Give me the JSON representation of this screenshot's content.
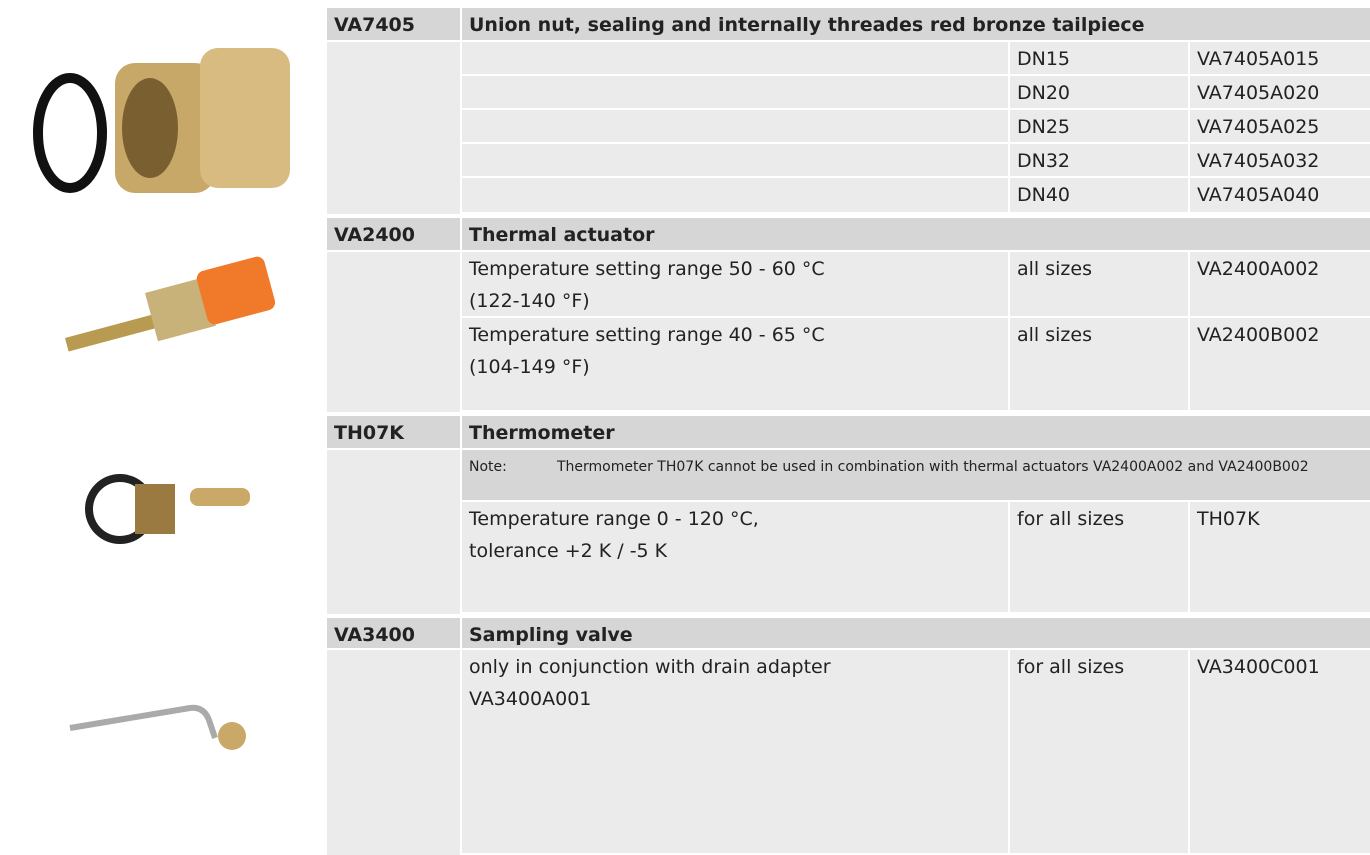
{
  "sections": [
    {
      "code": "VA7405",
      "title": "Union nut, sealing and internally threades red bronze tailpiece",
      "rows": [
        {
          "size": "DN15",
          "order": "VA7405A015"
        },
        {
          "size": "DN20",
          "order": "VA7405A020"
        },
        {
          "size": "DN25",
          "order": "VA7405A025"
        },
        {
          "size": "DN32",
          "order": "VA7405A032"
        },
        {
          "size": "DN40",
          "order": "VA7405A040"
        }
      ]
    },
    {
      "code": "VA2400",
      "title": "Thermal actuator",
      "rows": [
        {
          "desc": [
            "Temperature setting range 50 - 60 °C",
            "(122-140 °F)"
          ],
          "size": "all sizes",
          "order": "VA2400A002"
        },
        {
          "desc": [
            "Temperature setting range 40 - 65 °C",
            "(104-149 °F)"
          ],
          "size": "all sizes",
          "order": "VA2400B002"
        }
      ]
    },
    {
      "code": "TH07K",
      "title": "Thermometer",
      "note_label": "Note:",
      "note": "Thermometer TH07K cannot be used in combination with thermal actuators VA2400A002 and VA2400B002",
      "rows": [
        {
          "desc": [
            "Temperature range 0 - 120 °C,",
            "tolerance +2 K / -5 K"
          ],
          "size": "for all sizes",
          "order": "TH07K"
        }
      ]
    },
    {
      "code": "VA3400",
      "title": "Sampling valve",
      "rows": [
        {
          "desc": [
            "only in conjunction with drain adapter",
            "VA3400A001"
          ],
          "size": "for all sizes",
          "order": "VA3400C001"
        }
      ]
    }
  ]
}
